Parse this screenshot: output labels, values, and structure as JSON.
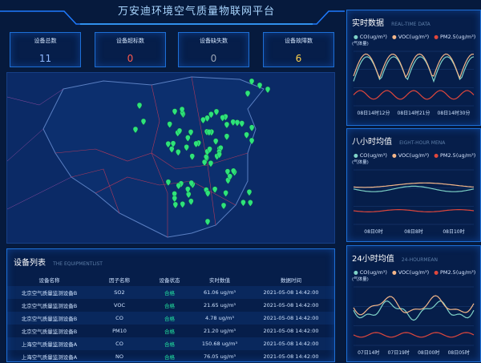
{
  "header": {
    "title": "万安迪环境空气质量物联网平台"
  },
  "stats": [
    {
      "label": "设备总数",
      "value": "11",
      "color": "#8fb8ff"
    },
    {
      "label": "设备超标数",
      "value": "0",
      "color": "#ff5a4e"
    },
    {
      "label": "设备缺失数",
      "value": "0",
      "color": "#9aa4b4"
    },
    {
      "label": "设备故障数",
      "value": "6",
      "color": "#ffd24a"
    }
  ],
  "device_list": {
    "title": "设备列表",
    "subtitle": "THE EQUIPMENTLIST",
    "columns": [
      "设备名称",
      "因子名称",
      "设备状态",
      "实时数值",
      "数据时间"
    ],
    "rows": [
      [
        "北京空气质量监测设备B",
        "SO2",
        "合格",
        "61.06 ug/m³",
        "2021-05-08 14:42:00"
      ],
      [
        "北京空气质量监测设备B",
        "VOC",
        "合格",
        "21.65 ug/m³",
        "2021-05-08 14:42:00"
      ],
      [
        "北京空气质量监测设备B",
        "CO",
        "合格",
        "4.78 ug/m³",
        "2021-05-08 14:42:00"
      ],
      [
        "北京空气质量监测设备B",
        "PM10",
        "合格",
        "21.20 ug/m³",
        "2021-05-08 14:42:00"
      ],
      [
        "上海空气质量监测设备A",
        "CO",
        "合格",
        "150.68 ug/m³",
        "2021-05-08 14:42:00"
      ],
      [
        "上海空气质量监测设备A",
        "NO",
        "合格",
        "76.05 ug/m³",
        "2021-05-08 14:42:00"
      ]
    ]
  },
  "charts": {
    "realtime": {
      "title": "实时数据",
      "subtitle": "REAL-TIME DATA",
      "unit": "(气体量)",
      "legend": [
        "CO(ug/m³)",
        "VOC(ug/m³)",
        "PM2.5(ug/m³)"
      ],
      "x_labels": [
        "08日14时12分",
        "08日14时21分",
        "08日14时30分"
      ]
    },
    "eight_hour": {
      "title": "八小时均值",
      "subtitle": "EIGHT-HOUR MENA",
      "unit": "(气体量)",
      "legend": [
        "CO(ug/m³)",
        "VOC(ug/m³)",
        "PM2.5(ug/m³)"
      ],
      "x_labels": [
        "08日0时",
        "08日8时",
        "08日10时"
      ]
    },
    "day": {
      "title": "24小时均值",
      "subtitle": "24-HOURMEAN",
      "unit": "(气体量)",
      "legend": [
        "CO(ug/m³)",
        "VOC(ug/m³)",
        "PM2.5(ug/m³)"
      ],
      "x_labels": [
        "07日14时",
        "07日19时",
        "08日00时",
        "08日05时"
      ]
    }
  },
  "colors": {
    "co": "#7fd3c8",
    "voc": "#f4b78a",
    "pm25": "#e0473c",
    "status_ok": "#22e6a0",
    "accent": "#1f7bff"
  }
}
